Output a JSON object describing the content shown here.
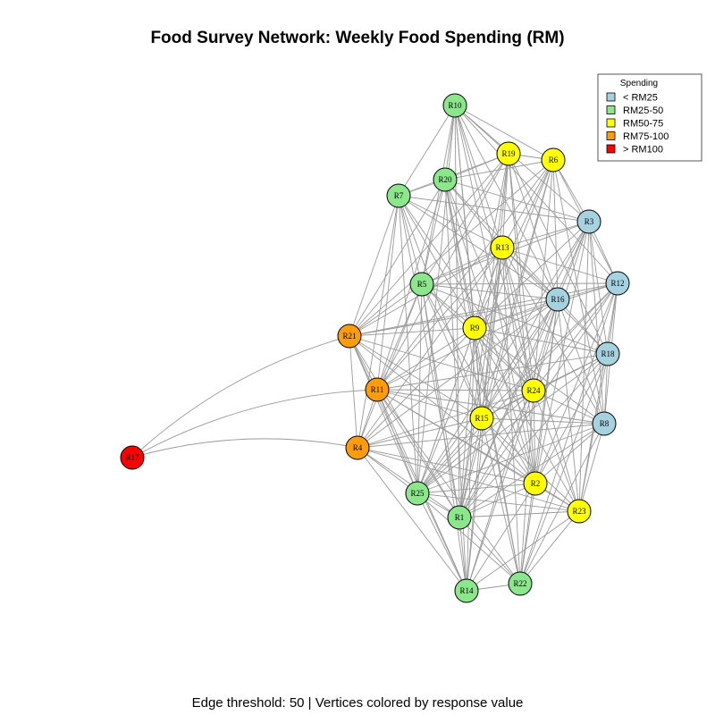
{
  "title": "Food Survey Network: Weekly Food Spending (RM)",
  "caption": "Edge threshold: 50 | Vertices colored by response value",
  "legend": {
    "title": "Spending",
    "items": [
      {
        "label": "< RM25",
        "color": "#a6d2e0"
      },
      {
        "label": "RM25-50",
        "color": "#8ce68c"
      },
      {
        "label": "RM50-75",
        "color": "#ffff00"
      },
      {
        "label": "RM75-100",
        "color": "#ff9c0a"
      },
      {
        "label": "> RM100",
        "color": "#ff0000"
      }
    ]
  },
  "nodes": [
    {
      "id": "R10",
      "category": 1
    },
    {
      "id": "R19",
      "category": 2
    },
    {
      "id": "R6",
      "category": 2
    },
    {
      "id": "R20",
      "category": 1
    },
    {
      "id": "R7",
      "category": 1
    },
    {
      "id": "R3",
      "category": 0
    },
    {
      "id": "R13",
      "category": 2
    },
    {
      "id": "R5",
      "category": 1
    },
    {
      "id": "R12",
      "category": 0
    },
    {
      "id": "R16",
      "category": 0
    },
    {
      "id": "R9",
      "category": 2
    },
    {
      "id": "R21",
      "category": 3
    },
    {
      "id": "R18",
      "category": 0
    },
    {
      "id": "R11",
      "category": 3
    },
    {
      "id": "R24",
      "category": 2
    },
    {
      "id": "R15",
      "category": 2
    },
    {
      "id": "R8",
      "category": 0
    },
    {
      "id": "R4",
      "category": 3
    },
    {
      "id": "R17",
      "category": 4
    },
    {
      "id": "R2",
      "category": 2
    },
    {
      "id": "R25",
      "category": 1
    },
    {
      "id": "R23",
      "category": 2
    },
    {
      "id": "R1",
      "category": 1
    },
    {
      "id": "R22",
      "category": 1
    },
    {
      "id": "R14",
      "category": 1
    }
  ],
  "edges": [
    [
      "R17",
      "R21"
    ],
    [
      "R17",
      "R11"
    ],
    [
      "R17",
      "R4"
    ],
    [
      "R10",
      "R19"
    ],
    [
      "R10",
      "R6"
    ],
    [
      "R10",
      "R20"
    ],
    [
      "R10",
      "R7"
    ],
    [
      "R10",
      "R13"
    ],
    [
      "R10",
      "R5"
    ],
    [
      "R10",
      "R9"
    ],
    [
      "R10",
      "R15"
    ],
    [
      "R10",
      "R24"
    ],
    [
      "R10",
      "R16"
    ],
    [
      "R10",
      "R12"
    ],
    [
      "R10",
      "R3"
    ],
    [
      "R10",
      "R1"
    ],
    [
      "R10",
      "R25"
    ],
    [
      "R10",
      "R2"
    ],
    [
      "R19",
      "R6"
    ],
    [
      "R19",
      "R20"
    ],
    [
      "R19",
      "R7"
    ],
    [
      "R19",
      "R13"
    ],
    [
      "R19",
      "R5"
    ],
    [
      "R19",
      "R9"
    ],
    [
      "R19",
      "R15"
    ],
    [
      "R19",
      "R24"
    ],
    [
      "R19",
      "R16"
    ],
    [
      "R19",
      "R21"
    ],
    [
      "R19",
      "R11"
    ],
    [
      "R19",
      "R1"
    ],
    [
      "R19",
      "R2"
    ],
    [
      "R19",
      "R18"
    ],
    [
      "R6",
      "R20"
    ],
    [
      "R6",
      "R3"
    ],
    [
      "R6",
      "R13"
    ],
    [
      "R6",
      "R16"
    ],
    [
      "R6",
      "R12"
    ],
    [
      "R6",
      "R9"
    ],
    [
      "R6",
      "R15"
    ],
    [
      "R6",
      "R24"
    ],
    [
      "R6",
      "R21"
    ],
    [
      "R6",
      "R11"
    ],
    [
      "R6",
      "R8"
    ],
    [
      "R6",
      "R25"
    ],
    [
      "R6",
      "R1"
    ],
    [
      "R20",
      "R7"
    ],
    [
      "R20",
      "R13"
    ],
    [
      "R20",
      "R5"
    ],
    [
      "R20",
      "R9"
    ],
    [
      "R20",
      "R15"
    ],
    [
      "R20",
      "R24"
    ],
    [
      "R20",
      "R21"
    ],
    [
      "R20",
      "R11"
    ],
    [
      "R20",
      "R3"
    ],
    [
      "R20",
      "R16"
    ],
    [
      "R20",
      "R2"
    ],
    [
      "R20",
      "R14"
    ],
    [
      "R20",
      "R22"
    ],
    [
      "R7",
      "R5"
    ],
    [
      "R7",
      "R13"
    ],
    [
      "R7",
      "R9"
    ],
    [
      "R7",
      "R21"
    ],
    [
      "R7",
      "R11"
    ],
    [
      "R7",
      "R15"
    ],
    [
      "R7",
      "R24"
    ],
    [
      "R7",
      "R4"
    ],
    [
      "R7",
      "R25"
    ],
    [
      "R7",
      "R1"
    ],
    [
      "R7",
      "R16"
    ],
    [
      "R7",
      "R3"
    ],
    [
      "R3",
      "R13"
    ],
    [
      "R3",
      "R12"
    ],
    [
      "R3",
      "R16"
    ],
    [
      "R3",
      "R9"
    ],
    [
      "R3",
      "R15"
    ],
    [
      "R3",
      "R24"
    ],
    [
      "R3",
      "R18"
    ],
    [
      "R3",
      "R8"
    ],
    [
      "R3",
      "R2"
    ],
    [
      "R3",
      "R23"
    ],
    [
      "R3",
      "R5"
    ],
    [
      "R3",
      "R25"
    ],
    [
      "R3",
      "R1"
    ],
    [
      "R13",
      "R5"
    ],
    [
      "R13",
      "R16"
    ],
    [
      "R13",
      "R12"
    ],
    [
      "R13",
      "R9"
    ],
    [
      "R13",
      "R15"
    ],
    [
      "R13",
      "R24"
    ],
    [
      "R13",
      "R21"
    ],
    [
      "R13",
      "R11"
    ],
    [
      "R13",
      "R18"
    ],
    [
      "R13",
      "R8"
    ],
    [
      "R13",
      "R2"
    ],
    [
      "R13",
      "R1"
    ],
    [
      "R13",
      "R25"
    ],
    [
      "R13",
      "R14"
    ],
    [
      "R13",
      "R22"
    ],
    [
      "R13",
      "R23"
    ],
    [
      "R13",
      "R4"
    ],
    [
      "R5",
      "R16"
    ],
    [
      "R5",
      "R9"
    ],
    [
      "R5",
      "R21"
    ],
    [
      "R5",
      "R11"
    ],
    [
      "R5",
      "R15"
    ],
    [
      "R5",
      "R24"
    ],
    [
      "R5",
      "R4"
    ],
    [
      "R5",
      "R25"
    ],
    [
      "R5",
      "R1"
    ],
    [
      "R5",
      "R12"
    ],
    [
      "R5",
      "R2"
    ],
    [
      "R5",
      "R14"
    ],
    [
      "R5",
      "R18"
    ],
    [
      "R12",
      "R16"
    ],
    [
      "R12",
      "R18"
    ],
    [
      "R12",
      "R8"
    ],
    [
      "R12",
      "R24"
    ],
    [
      "R12",
      "R9"
    ],
    [
      "R12",
      "R15"
    ],
    [
      "R12",
      "R2"
    ],
    [
      "R12",
      "R23"
    ],
    [
      "R12",
      "R21"
    ],
    [
      "R12",
      "R1"
    ],
    [
      "R12",
      "R22"
    ],
    [
      "R12",
      "R25"
    ],
    [
      "R16",
      "R9"
    ],
    [
      "R16",
      "R18"
    ],
    [
      "R16",
      "R8"
    ],
    [
      "R16",
      "R24"
    ],
    [
      "R16",
      "R15"
    ],
    [
      "R16",
      "R2"
    ],
    [
      "R16",
      "R23"
    ],
    [
      "R16",
      "R11"
    ],
    [
      "R16",
      "R21"
    ],
    [
      "R16",
      "R1"
    ],
    [
      "R16",
      "R25"
    ],
    [
      "R16",
      "R14"
    ],
    [
      "R16",
      "R22"
    ],
    [
      "R16",
      "R4"
    ],
    [
      "R9",
      "R21"
    ],
    [
      "R9",
      "R11"
    ],
    [
      "R9",
      "R15"
    ],
    [
      "R9",
      "R24"
    ],
    [
      "R9",
      "R18"
    ],
    [
      "R9",
      "R8"
    ],
    [
      "R9",
      "R2"
    ],
    [
      "R9",
      "R25"
    ],
    [
      "R9",
      "R1"
    ],
    [
      "R9",
      "R14"
    ],
    [
      "R9",
      "R22"
    ],
    [
      "R9",
      "R4"
    ],
    [
      "R9",
      "R23"
    ],
    [
      "R21",
      "R11"
    ],
    [
      "R21",
      "R4"
    ],
    [
      "R21",
      "R15"
    ],
    [
      "R21",
      "R25"
    ],
    [
      "R21",
      "R1"
    ],
    [
      "R21",
      "R24"
    ],
    [
      "R21",
      "R14"
    ],
    [
      "R21",
      "R2"
    ],
    [
      "R18",
      "R8"
    ],
    [
      "R18",
      "R24"
    ],
    [
      "R18",
      "R15"
    ],
    [
      "R18",
      "R2"
    ],
    [
      "R18",
      "R23"
    ],
    [
      "R18",
      "R11"
    ],
    [
      "R18",
      "R1"
    ],
    [
      "R18",
      "R25"
    ],
    [
      "R18",
      "R22"
    ],
    [
      "R11",
      "R4"
    ],
    [
      "R11",
      "R15"
    ],
    [
      "R11",
      "R24"
    ],
    [
      "R11",
      "R25"
    ],
    [
      "R11",
      "R1"
    ],
    [
      "R11",
      "R14"
    ],
    [
      "R11",
      "R2"
    ],
    [
      "R11",
      "R22"
    ],
    [
      "R11",
      "R8"
    ],
    [
      "R11",
      "R23"
    ],
    [
      "R24",
      "R15"
    ],
    [
      "R24",
      "R8"
    ],
    [
      "R24",
      "R2"
    ],
    [
      "R24",
      "R23"
    ],
    [
      "R24",
      "R25"
    ],
    [
      "R24",
      "R1"
    ],
    [
      "R24",
      "R14"
    ],
    [
      "R24",
      "R22"
    ],
    [
      "R24",
      "R4"
    ],
    [
      "R15",
      "R8"
    ],
    [
      "R15",
      "R2"
    ],
    [
      "R15",
      "R23"
    ],
    [
      "R15",
      "R25"
    ],
    [
      "R15",
      "R1"
    ],
    [
      "R15",
      "R14"
    ],
    [
      "R15",
      "R22"
    ],
    [
      "R15",
      "R4"
    ],
    [
      "R8",
      "R2"
    ],
    [
      "R8",
      "R23"
    ],
    [
      "R8",
      "R25"
    ],
    [
      "R8",
      "R1"
    ],
    [
      "R8",
      "R22"
    ],
    [
      "R8",
      "R4"
    ],
    [
      "R4",
      "R25"
    ],
    [
      "R4",
      "R1"
    ],
    [
      "R4",
      "R14"
    ],
    [
      "R4",
      "R2"
    ],
    [
      "R4",
      "R23"
    ],
    [
      "R2",
      "R23"
    ],
    [
      "R2",
      "R25"
    ],
    [
      "R2",
      "R1"
    ],
    [
      "R2",
      "R14"
    ],
    [
      "R2",
      "R22"
    ],
    [
      "R25",
      "R1"
    ],
    [
      "R25",
      "R14"
    ],
    [
      "R25",
      "R22"
    ],
    [
      "R25",
      "R23"
    ],
    [
      "R23",
      "R1"
    ],
    [
      "R23",
      "R22"
    ],
    [
      "R23",
      "R14"
    ],
    [
      "R1",
      "R14"
    ],
    [
      "R1",
      "R22"
    ],
    [
      "R14",
      "R22"
    ]
  ]
}
